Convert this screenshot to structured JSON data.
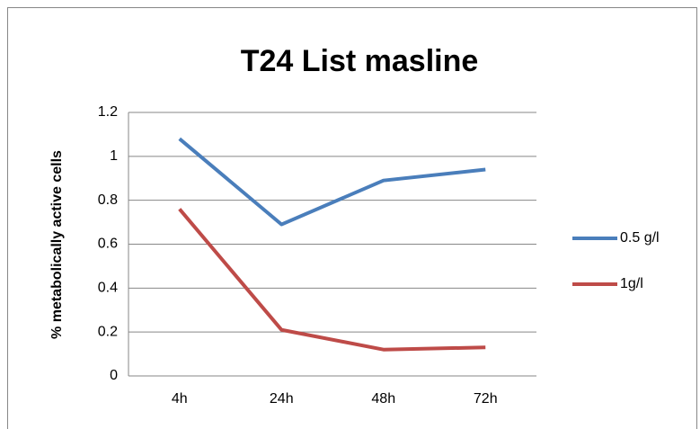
{
  "chart_data": {
    "type": "line",
    "title": "T24   List masline",
    "y_label": "% metabolically active cells",
    "categories": [
      "4h",
      "24h",
      "48h",
      "72h"
    ],
    "series": [
      {
        "name": "0.5 g/l",
        "color": "#4a7ebb",
        "values": [
          1.08,
          0.69,
          0.89,
          0.94
        ]
      },
      {
        "name": "1g/l",
        "color": "#be4b48",
        "values": [
          0.76,
          0.21,
          0.12,
          0.13
        ]
      }
    ],
    "ylim": [
      0,
      1.2
    ],
    "yticks": [
      0,
      0.2,
      0.4,
      0.6,
      0.8,
      1,
      1.2
    ],
    "grid": true,
    "legend": "right"
  }
}
